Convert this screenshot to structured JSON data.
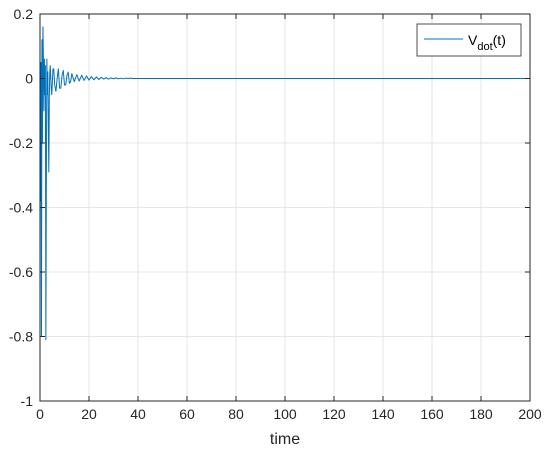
{
  "chart_data": {
    "type": "line",
    "title": "",
    "xlabel": "time",
    "ylabel": "",
    "xlim": [
      0,
      200
    ],
    "ylim": [
      -1,
      0.2
    ],
    "xticks": [
      0,
      20,
      40,
      60,
      80,
      100,
      120,
      140,
      160,
      180,
      200
    ],
    "yticks": [
      -1,
      -0.8,
      -0.6,
      -0.4,
      -0.2,
      0,
      0.2
    ],
    "xtick_labels": [
      "0",
      "20",
      "40",
      "60",
      "80",
      "100",
      "120",
      "140",
      "160",
      "180",
      "200"
    ],
    "ytick_labels": [
      "-1",
      "-0.8",
      "-0.6",
      "-0.4",
      "-0.2",
      "0",
      "0.2"
    ],
    "grid": true,
    "legend_position": "top-right",
    "colors": {
      "series": "#0072BD",
      "grid": "#dfdfdf",
      "axes": "#262626"
    },
    "series": [
      {
        "name": "V_dot(t)",
        "legend_main": "V",
        "legend_sub": "dot",
        "legend_suffix": "(t)",
        "x": [
          0,
          0.2,
          0.4,
          0.6,
          0.8,
          1.0,
          1.2,
          1.4,
          1.6,
          1.8,
          2.0,
          2.2,
          2.4,
          2.6,
          2.8,
          3.0,
          3.2,
          3.4,
          3.6,
          3.8,
          4.0,
          4.2,
          4.4,
          4.6,
          4.8,
          5.0,
          5.3,
          5.6,
          6.0,
          6.5,
          7.0,
          7.5,
          8.0,
          8.5,
          9.0,
          9.5,
          10.0,
          10.5,
          11.0,
          11.5,
          12.0,
          12.5,
          13.0,
          14.0,
          15.0,
          16.0,
          17.0,
          18.0,
          19.0,
          20.0,
          21.0,
          22.0,
          23.0,
          24.0,
          25.0,
          26.0,
          27.0,
          28.0,
          29.0,
          30.0,
          31.0,
          32.0,
          33.0,
          34.0,
          35.0,
          36.0,
          37.0,
          38.0,
          39.0,
          40.0,
          42.0,
          44.0,
          46.0,
          48.0,
          50.0,
          55.0,
          60.0,
          80.0,
          100.0,
          150.0,
          200.0
        ],
        "y": [
          0,
          -0.38,
          0.05,
          -0.8,
          0.12,
          -0.2,
          0.16,
          0.05,
          -0.1,
          0.06,
          -0.05,
          0.04,
          -0.81,
          -0.3,
          0.06,
          -0.05,
          0.02,
          -0.15,
          -0.29,
          -0.06,
          0.02,
          0.04,
          0.0,
          -0.03,
          -0.05,
          -0.02,
          0.03,
          0.03,
          -0.02,
          -0.04,
          0.0,
          0.03,
          -0.03,
          -0.03,
          0.01,
          0.025,
          -0.02,
          -0.02,
          0.01,
          0.02,
          -0.015,
          -0.01,
          0.015,
          -0.01,
          0.012,
          -0.008,
          0.01,
          -0.006,
          0.008,
          -0.005,
          0.006,
          -0.004,
          0.005,
          -0.003,
          0.004,
          -0.002,
          0.003,
          -0.002,
          0.002,
          -0.001,
          0.002,
          -0.001,
          0.001,
          -0.001,
          0.001,
          0,
          0.001,
          0,
          0,
          0,
          0,
          0,
          0,
          0,
          0,
          0,
          0,
          0,
          0,
          0,
          0
        ]
      }
    ]
  }
}
